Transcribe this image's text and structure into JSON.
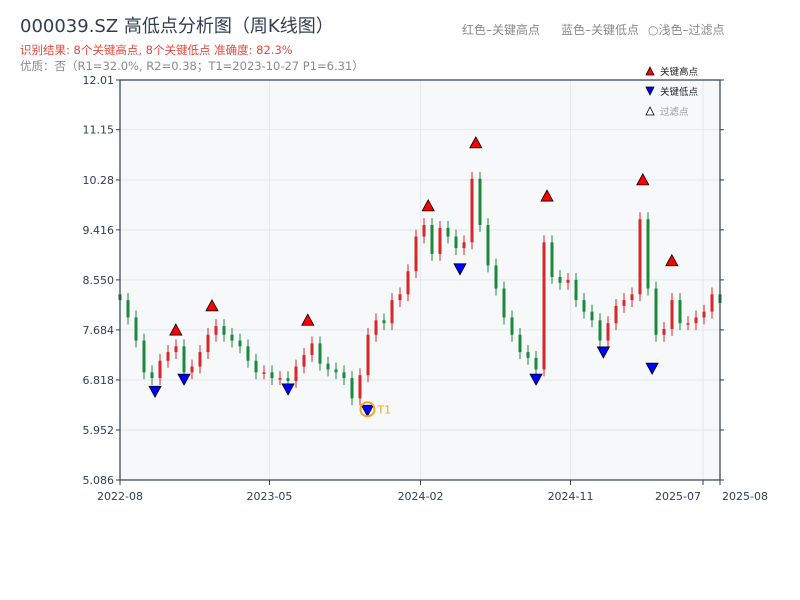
{
  "header": {
    "title": "000039.SZ 高低点分析图（周K线图）",
    "result": "识别结果: 8个关键高点, 8个关键低点  准确度: 82.3%",
    "quality": "优质：否（R1=32.0%, R2=0.38；T1=2023-10-27 P1=6.31）",
    "note_red": "红色–关键高点",
    "note_blue": "蓝色–关键低点",
    "note_light": "○浅色–过滤点"
  },
  "chart_data": {
    "type": "candlestick",
    "title": "000039.SZ 高低点分析图（周K线图）",
    "ylim": [
      5.086,
      12.01
    ],
    "yticks": [
      "5.086",
      "5.952",
      "6.818",
      "7.684",
      "8.550",
      "9.416",
      "10.28",
      "11.15",
      "12.01"
    ],
    "xlim": [
      "2022-08-01",
      "2025-08-01"
    ],
    "xticks": [
      "2022-08",
      "2023-05",
      "2024-02",
      "2024-11",
      "2025-07",
      "2025-08"
    ],
    "grid": true,
    "legend_placement": "top-right",
    "legend": [
      "关键高点",
      "关键低点",
      "过滤点"
    ],
    "colors": {
      "up": "#d9262b",
      "down": "#1a8a3a",
      "high": "#ff0000",
      "low": "#0000ff",
      "t1": "#f5a623",
      "bg": "#f6f8fa"
    },
    "closes": [
      8.2,
      7.9,
      7.5,
      6.95,
      6.85,
      7.15,
      7.3,
      7.4,
      6.95,
      7.05,
      7.3,
      7.6,
      7.75,
      7.6,
      7.5,
      7.4,
      7.15,
      6.95,
      6.95,
      6.85,
      6.85,
      6.8,
      7.05,
      7.25,
      7.45,
      7.1,
      7.0,
      6.95,
      6.85,
      6.5,
      6.9,
      7.6,
      7.85,
      7.8,
      8.2,
      8.3,
      8.7,
      9.3,
      9.5,
      9.0,
      9.45,
      9.3,
      9.1,
      9.2,
      10.3,
      9.5,
      8.8,
      8.4,
      7.9,
      7.6,
      7.3,
      7.2,
      7.0,
      9.2,
      8.6,
      8.5,
      8.55,
      8.2,
      8.0,
      7.85,
      7.5,
      7.8,
      8.1,
      8.2,
      8.3,
      9.6,
      8.4,
      7.6,
      7.7,
      8.2,
      7.8,
      7.8,
      7.9,
      8.0,
      8.3,
      8.15
    ],
    "key_highs": [
      {
        "date": "2022-11-11",
        "price": 7.56
      },
      {
        "date": "2023-01-16",
        "price": 7.98
      },
      {
        "date": "2023-07-10",
        "price": 7.73
      },
      {
        "date": "2024-02-15",
        "price": 9.71
      },
      {
        "date": "2024-05-12",
        "price": 10.8
      },
      {
        "date": "2024-09-19",
        "price": 9.88
      },
      {
        "date": "2025-03-13",
        "price": 10.16
      },
      {
        "date": "2025-05-05",
        "price": 8.76
      }
    ],
    "key_lows": [
      {
        "date": "2022-10-04",
        "price": 6.64
      },
      {
        "date": "2022-11-26",
        "price": 6.85
      },
      {
        "date": "2023-06-04",
        "price": 6.68
      },
      {
        "date": "2023-10-27",
        "price": 6.31
      },
      {
        "date": "2024-04-13",
        "price": 8.76
      },
      {
        "date": "2024-08-30",
        "price": 6.85
      },
      {
        "date": "2024-12-31",
        "price": 7.32
      },
      {
        "date": "2025-03-30",
        "price": 7.04
      }
    ],
    "t1": {
      "label": "T1",
      "date": "2023-10-27",
      "price": 6.31
    }
  }
}
